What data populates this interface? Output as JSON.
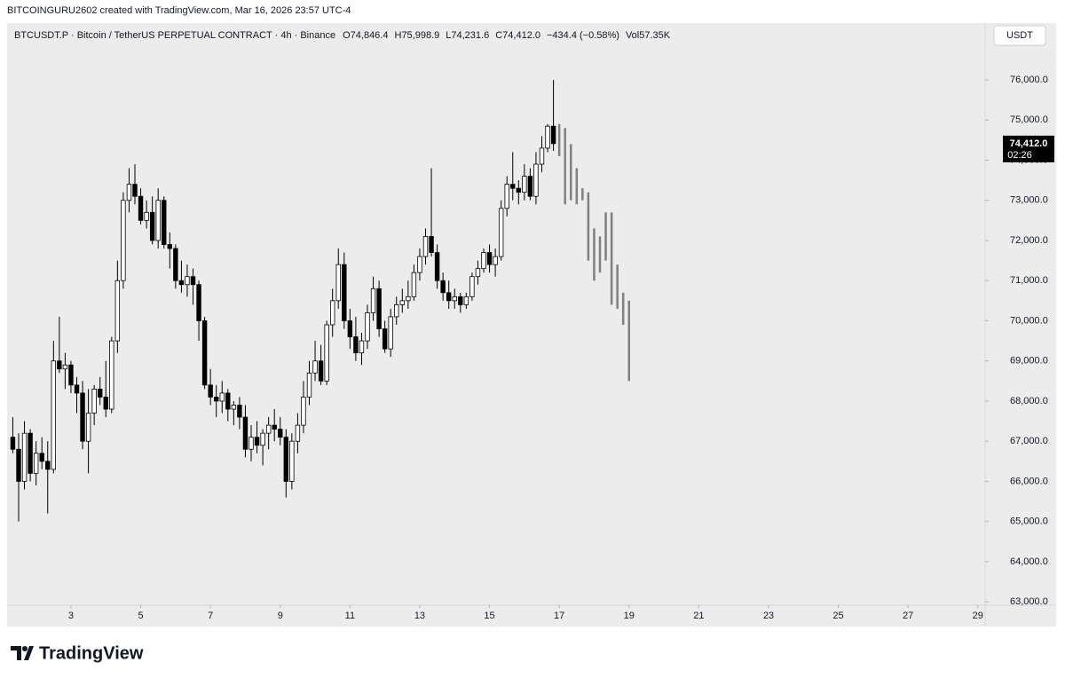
{
  "header": {
    "author_line": "BITCOINGURU2602 created with TradingView.com, Mar 16, 2026 23:57 UTC-4"
  },
  "chart_data": {
    "type": "candlestick",
    "symbol": "BTCUSDT.P · Bitcoin / TetherUS PERPETUAL CONTRACT · 4h · Binance",
    "ohlc_info": {
      "open_prefix": "O",
      "open": "74,846.4",
      "high_prefix": "H",
      "high": "75,998.9",
      "low_prefix": "L",
      "low": "74,231.6",
      "close_prefix": "C",
      "close": "74,412.0",
      "change": "−434.4 (−0.58%)",
      "volume_prefix": "Vol",
      "volume": "57.35K"
    },
    "currency": "USDT",
    "last_price_label": "74,412.0",
    "countdown": "02:26",
    "up_color": "#ffffff",
    "down_color": "#000000",
    "x": [
      1.3333,
      1.5,
      1.6667,
      1.8333,
      2,
      2.1667,
      2.3333,
      2.5,
      2.6667,
      2.8333,
      3,
      3.1667,
      3.3333,
      3.5,
      3.6667,
      3.8333,
      4,
      4.1667,
      4.3333,
      4.5,
      4.6667,
      4.8333,
      5,
      5.1667,
      5.3333,
      5.5,
      5.6667,
      5.8333,
      6,
      6.1667,
      6.3333,
      6.5,
      6.6667,
      6.8333,
      7,
      7.1667,
      7.3333,
      7.5,
      7.6667,
      7.8333,
      8,
      8.1667,
      8.3333,
      8.5,
      8.6667,
      8.8333,
      9,
      9.1667,
      9.3333,
      9.5,
      9.6667,
      9.8333,
      10,
      10.1667,
      10.3333,
      10.5,
      10.6667,
      10.8333,
      11,
      11.1667,
      11.3333,
      11.5,
      11.6667,
      11.8333,
      12,
      12.1667,
      12.3333,
      12.5,
      12.6667,
      12.8333,
      13,
      13.1667,
      13.3333,
      13.5,
      13.6667,
      13.8333,
      14,
      14.1667,
      14.3333,
      14.5,
      14.6667,
      14.8333,
      15,
      15.1667,
      15.3333,
      15.5,
      15.6667,
      15.8333,
      16,
      16.1667,
      16.3333,
      16.5,
      16.6667,
      16.8333
    ],
    "open": [
      67100,
      66800,
      66000,
      67200,
      66200,
      66700,
      66500,
      66300,
      69000,
      68800,
      68900,
      68400,
      68200,
      67000,
      67700,
      68300,
      68100,
      67800,
      69500,
      71000,
      73000,
      73400,
      73100,
      72500,
      72700,
      72000,
      73000,
      71900,
      71800,
      71000,
      70900,
      71100,
      70900,
      70000,
      68400,
      68100,
      68000,
      68200,
      67800,
      67900,
      67600,
      66800,
      67100,
      66900,
      67200,
      67400,
      67300,
      67100,
      66000,
      67000,
      67400,
      68100,
      68700,
      69000,
      68500,
      69900,
      70500,
      71400,
      70000,
      69600,
      69200,
      69500,
      70200,
      70800,
      69800,
      69300,
      70100,
      70400,
      70500,
      70600,
      71200,
      71600,
      72100,
      71700,
      71000,
      70700,
      70500,
      70600,
      70400,
      70600,
      71100,
      71300,
      71700,
      71400,
      71600,
      72800,
      73400,
      73300,
      73200,
      73600,
      73100,
      73900,
      74300,
      74846.4
    ],
    "high": [
      67600,
      67200,
      67500,
      67300,
      67000,
      67100,
      67000,
      69500,
      70100,
      69200,
      69000,
      68600,
      68500,
      68300,
      68400,
      68600,
      69000,
      69600,
      71500,
      73200,
      73800,
      73900,
      73300,
      73000,
      73100,
      73300,
      73100,
      72200,
      71900,
      71500,
      71400,
      71300,
      71000,
      70100,
      68800,
      68400,
      68500,
      68300,
      68000,
      68100,
      67900,
      67400,
      67500,
      67300,
      67600,
      67800,
      67600,
      67300,
      67200,
      67700,
      68500,
      69000,
      69500,
      69400,
      70000,
      70800,
      71800,
      71700,
      70300,
      70100,
      69700,
      70400,
      71100,
      71000,
      70000,
      70300,
      70600,
      70800,
      71000,
      71400,
      71800,
      72300,
      73800,
      71900,
      71200,
      71000,
      70800,
      70700,
      70700,
      71200,
      71500,
      71800,
      71900,
      71800,
      73000,
      73600,
      74200,
      73500,
      73900,
      73800,
      74200,
      74600,
      74900,
      75998.9
    ],
    "low": [
      66700,
      65000,
      65800,
      66000,
      65900,
      66300,
      65200,
      66200,
      68700,
      68300,
      68200,
      67700,
      66800,
      66200,
      67400,
      67900,
      67600,
      67700,
      69200,
      70800,
      72700,
      72900,
      72400,
      72300,
      71900,
      71800,
      71800,
      71300,
      70800,
      70700,
      70600,
      70400,
      69500,
      68300,
      67900,
      67600,
      67700,
      67500,
      67400,
      67300,
      66600,
      66500,
      66700,
      66400,
      66800,
      67000,
      66900,
      65600,
      65800,
      66700,
      67200,
      67900,
      68500,
      68400,
      68400,
      69600,
      70300,
      69800,
      69300,
      69000,
      68900,
      69300,
      70000,
      69600,
      69200,
      69100,
      69900,
      70200,
      70300,
      70500,
      71000,
      71400,
      71600,
      70800,
      70500,
      70300,
      70300,
      70200,
      70300,
      70500,
      70900,
      71200,
      71200,
      71100,
      71500,
      72600,
      73000,
      72900,
      73000,
      73000,
      72900,
      73700,
      74200,
      74231.6
    ],
    "close": [
      66800,
      66000,
      67200,
      66200,
      66700,
      66500,
      66300,
      69000,
      68800,
      68900,
      68400,
      68200,
      67000,
      67700,
      68300,
      68100,
      67800,
      69500,
      71000,
      73000,
      73400,
      73100,
      72500,
      72700,
      72000,
      73000,
      71900,
      71800,
      71000,
      70900,
      71100,
      70900,
      70000,
      68400,
      68100,
      68000,
      68200,
      67800,
      67900,
      67600,
      66800,
      67100,
      66900,
      67200,
      67400,
      67300,
      67100,
      66000,
      67000,
      67400,
      68100,
      68700,
      69000,
      68500,
      69900,
      70500,
      71400,
      70000,
      69600,
      69200,
      69500,
      70200,
      70800,
      69800,
      69300,
      70100,
      70400,
      70500,
      70600,
      71200,
      71600,
      72100,
      71700,
      71000,
      70700,
      70500,
      70600,
      70400,
      70600,
      71100,
      71300,
      71700,
      71400,
      71600,
      72800,
      73400,
      73300,
      73200,
      73600,
      73100,
      73900,
      74300,
      74846.4,
      74412.0
    ],
    "projection": {
      "color": "#808080",
      "x": [
        17,
        17.1667,
        17.3333,
        17.5,
        17.6667,
        17.8333,
        18,
        18.1667,
        18.3333,
        18.5,
        18.6667,
        18.8333,
        19
      ],
      "high": [
        74900,
        74800,
        74400,
        73800,
        73300,
        73200,
        72300,
        72100,
        72700,
        72700,
        71400,
        70700,
        70500
      ],
      "low": [
        74100,
        72900,
        73000,
        72900,
        73000,
        71500,
        71000,
        71200,
        71500,
        70400,
        70300,
        69900,
        68500
      ]
    },
    "xlim": [
      1.22,
      29.21
    ],
    "xticks": [
      3,
      5,
      7,
      9,
      11,
      13,
      15,
      17,
      19,
      21,
      23,
      25,
      27,
      29
    ],
    "ylim": [
      62960,
      76840
    ],
    "yticks": [
      {
        "value": 63000,
        "label": "63,000.0"
      },
      {
        "value": 64000,
        "label": "64,000.0"
      },
      {
        "value": 65000,
        "label": "65,000.0"
      },
      {
        "value": 66000,
        "label": "66,000.0"
      },
      {
        "value": 67000,
        "label": "67,000.0"
      },
      {
        "value": 68000,
        "label": "68,000.0"
      },
      {
        "value": 69000,
        "label": "69,000.0"
      },
      {
        "value": 70000,
        "label": "70,000.0"
      },
      {
        "value": 71000,
        "label": "71,000.0"
      },
      {
        "value": 72000,
        "label": "72,000.0"
      },
      {
        "value": 73000,
        "label": "73,000.0"
      },
      {
        "value": 74000,
        "label": "74,000.0"
      },
      {
        "value": 75000,
        "label": "75,000.0"
      },
      {
        "value": 76000,
        "label": "76,000.0"
      }
    ]
  },
  "footer": {
    "brand": "TradingView"
  }
}
